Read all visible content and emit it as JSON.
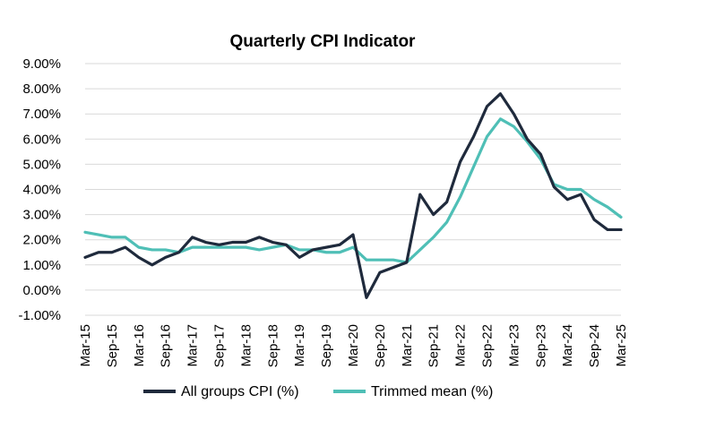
{
  "chart_data": {
    "type": "line",
    "title": "Quarterly CPI Indicator",
    "xlabel": "",
    "ylabel": "",
    "ylim": [
      -1,
      9
    ],
    "yticks": [
      -1,
      0,
      1,
      2,
      3,
      4,
      5,
      6,
      7,
      8,
      9
    ],
    "ytick_labels": [
      "-1.00%",
      "0.00%",
      "1.00%",
      "2.00%",
      "3.00%",
      "4.00%",
      "5.00%",
      "6.00%",
      "7.00%",
      "8.00%",
      "9.00%"
    ],
    "grid": true,
    "legend_position": "bottom-center",
    "categories": [
      "Mar-15",
      "Jun-15",
      "Sep-15",
      "Dec-15",
      "Mar-16",
      "Jun-16",
      "Sep-16",
      "Dec-16",
      "Mar-17",
      "Jun-17",
      "Sep-17",
      "Dec-17",
      "Mar-18",
      "Jun-18",
      "Sep-18",
      "Dec-18",
      "Mar-19",
      "Jun-19",
      "Sep-19",
      "Dec-19",
      "Mar-20",
      "Jun-20",
      "Sep-20",
      "Dec-20",
      "Mar-21",
      "Jun-21",
      "Sep-21",
      "Dec-21",
      "Mar-22",
      "Jun-22",
      "Sep-22",
      "Dec-22",
      "Mar-23",
      "Jun-23",
      "Sep-23",
      "Dec-23",
      "Mar-24",
      "Jun-24",
      "Sep-24",
      "Dec-24",
      "Mar-25"
    ],
    "xtick_labels": [
      "Mar-15",
      "Sep-15",
      "Mar-16",
      "Sep-16",
      "Mar-17",
      "Sep-17",
      "Mar-18",
      "Sep-18",
      "Mar-19",
      "Sep-19",
      "Mar-20",
      "Sep-20",
      "Mar-21",
      "Sep-21",
      "Mar-22",
      "Sep-22",
      "Mar-23",
      "Sep-23",
      "Mar-24",
      "Sep-24",
      "Mar-25"
    ],
    "series": [
      {
        "name": "All groups CPI (%)",
        "color": "#1f2a3c",
        "values": [
          1.3,
          1.5,
          1.5,
          1.7,
          1.3,
          1.0,
          1.3,
          1.5,
          2.1,
          1.9,
          1.8,
          1.9,
          1.9,
          2.1,
          1.9,
          1.8,
          1.3,
          1.6,
          1.7,
          1.8,
          2.2,
          -0.3,
          0.7,
          0.9,
          1.1,
          3.8,
          3.0,
          3.5,
          5.1,
          6.1,
          7.3,
          7.8,
          7.0,
          6.0,
          5.4,
          4.1,
          3.6,
          3.8,
          2.8,
          2.4,
          2.4
        ]
      },
      {
        "name": "Trimmed mean (%)",
        "color": "#4fbfb6",
        "values": [
          2.3,
          2.2,
          2.1,
          2.1,
          1.7,
          1.6,
          1.6,
          1.5,
          1.7,
          1.7,
          1.7,
          1.7,
          1.7,
          1.6,
          1.7,
          1.8,
          1.6,
          1.6,
          1.5,
          1.5,
          1.7,
          1.2,
          1.2,
          1.2,
          1.1,
          1.6,
          2.1,
          2.7,
          3.7,
          4.9,
          6.1,
          6.8,
          6.5,
          5.9,
          5.2,
          4.2,
          4.0,
          4.0,
          3.6,
          3.3,
          2.9
        ]
      }
    ]
  }
}
